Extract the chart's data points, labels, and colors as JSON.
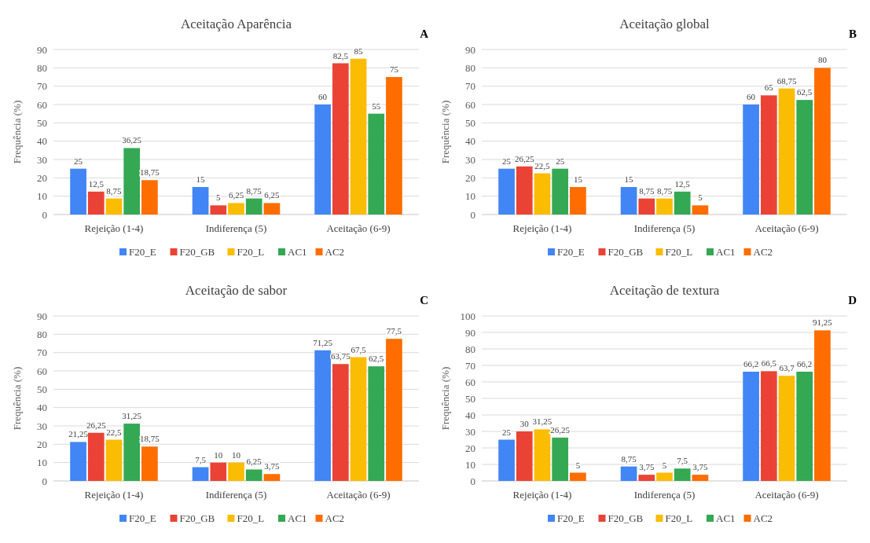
{
  "chart_data": [
    {
      "type": "bar",
      "title": "Aceitação Aparência",
      "ylabel": "Frequência (%)",
      "annotations": [
        "A"
      ],
      "categories": [
        "Rejeição (1-4)",
        "Indiferença (5)",
        "Aceitação (6-9)"
      ],
      "ylim": [
        0,
        90
      ],
      "yticks": [
        0,
        10,
        20,
        30,
        40,
        50,
        60,
        70,
        80,
        90
      ],
      "grid": "y",
      "legend": "bottom",
      "series": [
        {
          "name": "F20_E",
          "color": "#4285f4",
          "values": [
            25,
            15,
            60
          ],
          "value_labels": [
            "25",
            "15",
            "60"
          ]
        },
        {
          "name": "F20_GB",
          "color": "#ea4335",
          "values": [
            12.5,
            5,
            82.5
          ],
          "value_labels": [
            "12,5",
            "5",
            "82,5"
          ]
        },
        {
          "name": "F20_L",
          "color": "#fbbc04",
          "values": [
            8.75,
            6.25,
            85
          ],
          "value_labels": [
            "8,75",
            "6,25",
            "85"
          ]
        },
        {
          "name": "AC1",
          "color": "#34a853",
          "values": [
            36.25,
            8.75,
            55
          ],
          "value_labels": [
            "36,25",
            "8,75",
            "55"
          ]
        },
        {
          "name": "AC2",
          "color": "#ff6d01",
          "values": [
            18.75,
            6.25,
            75
          ],
          "value_labels": [
            "18,75",
            "6,25",
            "75"
          ]
        }
      ]
    },
    {
      "type": "bar",
      "title": "Aceitação global",
      "ylabel": "Frequência (%)",
      "annotations": [
        "B"
      ],
      "categories": [
        "Rejeição (1-4)",
        "Indiferença (5)",
        "Aceitação (6-9)"
      ],
      "ylim": [
        0,
        90
      ],
      "yticks": [
        0,
        10,
        20,
        30,
        40,
        50,
        60,
        70,
        80,
        90
      ],
      "grid": "y",
      "legend": "bottom",
      "series": [
        {
          "name": "F20_E",
          "color": "#4285f4",
          "values": [
            25,
            15,
            60
          ],
          "value_labels": [
            "25",
            "15",
            "60"
          ]
        },
        {
          "name": "F20_GB",
          "color": "#ea4335",
          "values": [
            26.25,
            8.75,
            65
          ],
          "value_labels": [
            "26,25",
            "8,75",
            "65"
          ]
        },
        {
          "name": "F20_L",
          "color": "#fbbc04",
          "values": [
            22.5,
            8.75,
            68.75
          ],
          "value_labels": [
            "22,5",
            "8,75",
            "68,75"
          ]
        },
        {
          "name": "AC1",
          "color": "#34a853",
          "values": [
            25,
            12.5,
            62.5
          ],
          "value_labels": [
            "25",
            "12,5",
            "62,5"
          ]
        },
        {
          "name": "AC2",
          "color": "#ff6d01",
          "values": [
            15,
            5,
            80
          ],
          "value_labels": [
            "15",
            "5",
            "80"
          ]
        }
      ]
    },
    {
      "type": "bar",
      "title": "Aceitação de sabor",
      "ylabel": "Frequência (%)",
      "annotations": [
        "C"
      ],
      "categories": [
        "Rejeição (1-4)",
        "Indiferença (5)",
        "Aceitação (6-9)"
      ],
      "ylim": [
        0,
        90
      ],
      "yticks": [
        0,
        10,
        20,
        30,
        40,
        50,
        60,
        70,
        80,
        90
      ],
      "grid": "y",
      "legend": "bottom",
      "series": [
        {
          "name": "F20_E",
          "color": "#4285f4",
          "values": [
            21.25,
            7.5,
            71.25
          ],
          "value_labels": [
            "21,25",
            "7,5",
            "71,25"
          ]
        },
        {
          "name": "F20_GB",
          "color": "#ea4335",
          "values": [
            26.25,
            10,
            63.75
          ],
          "value_labels": [
            "26,25",
            "10",
            "63,75"
          ]
        },
        {
          "name": "F20_L",
          "color": "#fbbc04",
          "values": [
            22.5,
            10,
            67.5
          ],
          "value_labels": [
            "22,5",
            "10",
            "67,5"
          ]
        },
        {
          "name": "AC1",
          "color": "#34a853",
          "values": [
            31.25,
            6.25,
            62.5
          ],
          "value_labels": [
            "31,25",
            "6,25",
            "62,5"
          ]
        },
        {
          "name": "AC2",
          "color": "#ff6d01",
          "values": [
            18.75,
            3.75,
            77.5
          ],
          "value_labels": [
            "18,75",
            "3,75",
            "77,5"
          ]
        }
      ]
    },
    {
      "type": "bar",
      "title": "Aceitação de textura",
      "ylabel": "Frequência (%)",
      "annotations": [
        "D"
      ],
      "categories": [
        "Rejeição (1-4)",
        "Indiferença (5)",
        "Aceitação (6-9)"
      ],
      "ylim": [
        0,
        100
      ],
      "yticks": [
        0,
        10,
        20,
        30,
        40,
        50,
        60,
        70,
        80,
        90,
        100
      ],
      "grid": "y",
      "legend": "bottom",
      "series": [
        {
          "name": "F20_E",
          "color": "#4285f4",
          "values": [
            25,
            8.75,
            66.2
          ],
          "value_labels": [
            "25",
            "8,75",
            "66,2"
          ]
        },
        {
          "name": "F20_GB",
          "color": "#ea4335",
          "values": [
            30,
            3.75,
            66.5
          ],
          "value_labels": [
            "30",
            "3,75",
            "66,5"
          ]
        },
        {
          "name": "F20_L",
          "color": "#fbbc04",
          "values": [
            31.25,
            5,
            63.7
          ],
          "value_labels": [
            "31,25",
            "5",
            "63,7"
          ]
        },
        {
          "name": "AC1",
          "color": "#34a853",
          "values": [
            26.25,
            7.5,
            66.2
          ],
          "value_labels": [
            "26,25",
            "7,5",
            "66,2"
          ]
        },
        {
          "name": "AC2",
          "color": "#ff6d01",
          "values": [
            5,
            3.75,
            91.25
          ],
          "value_labels": [
            "5",
            "3,75",
            "91,25"
          ]
        }
      ]
    }
  ]
}
